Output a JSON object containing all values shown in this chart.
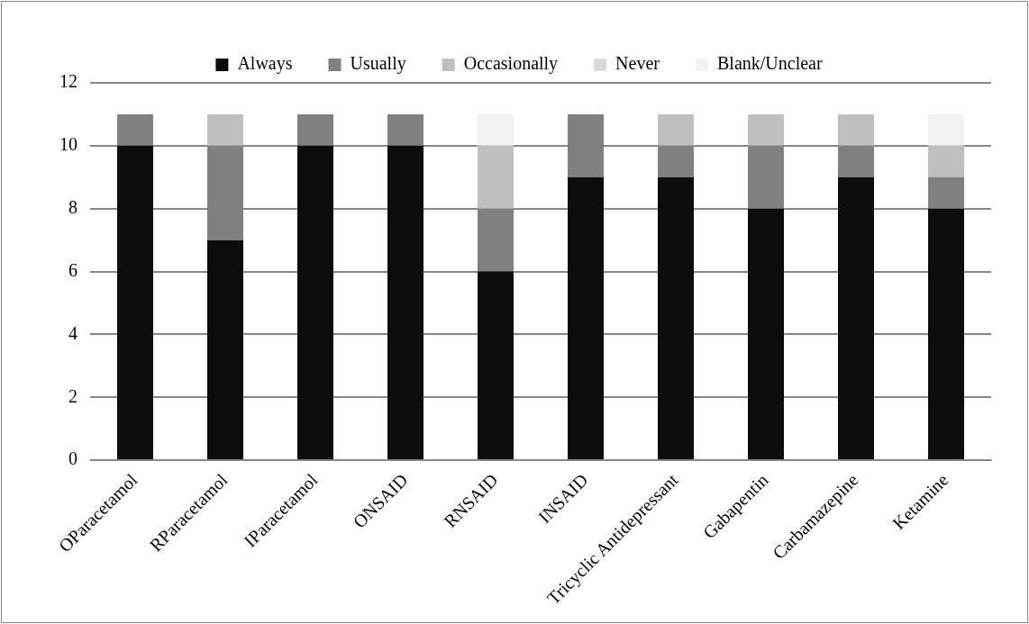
{
  "chart_data": {
    "type": "bar",
    "stacked": true,
    "categories": [
      "OParacetamol",
      "RParacetamol",
      "IParacetamol",
      "ONSAID",
      "RNSAID",
      "INSAID",
      "Tricyclic Antidepressant",
      "Gabapentin",
      "Carbamazepine",
      "Ketamine"
    ],
    "series": [
      {
        "name": "Always",
        "color": "#0d0d0d",
        "values": [
          10,
          7,
          10,
          10,
          6,
          9,
          9,
          8,
          9,
          8
        ]
      },
      {
        "name": "Usually",
        "color": "#808080",
        "values": [
          1,
          3,
          1,
          1,
          2,
          2,
          1,
          2,
          1,
          1
        ]
      },
      {
        "name": "Occasionally",
        "color": "#bfbfbf",
        "values": [
          0,
          1,
          0,
          0,
          2,
          0,
          1,
          1,
          1,
          1
        ]
      },
      {
        "name": "Never",
        "color": "#d9d9d9",
        "values": [
          0,
          0,
          0,
          0,
          0,
          0,
          0,
          0,
          0,
          0
        ]
      },
      {
        "name": "Blank/Unclear",
        "color": "#f2f2f2",
        "values": [
          0,
          0,
          0,
          0,
          1,
          0,
          0,
          0,
          0,
          1
        ]
      }
    ],
    "ylim": [
      0,
      12
    ],
    "yticks": [
      0,
      2,
      4,
      6,
      8,
      10,
      12
    ],
    "grid": "y",
    "legend": "top"
  }
}
